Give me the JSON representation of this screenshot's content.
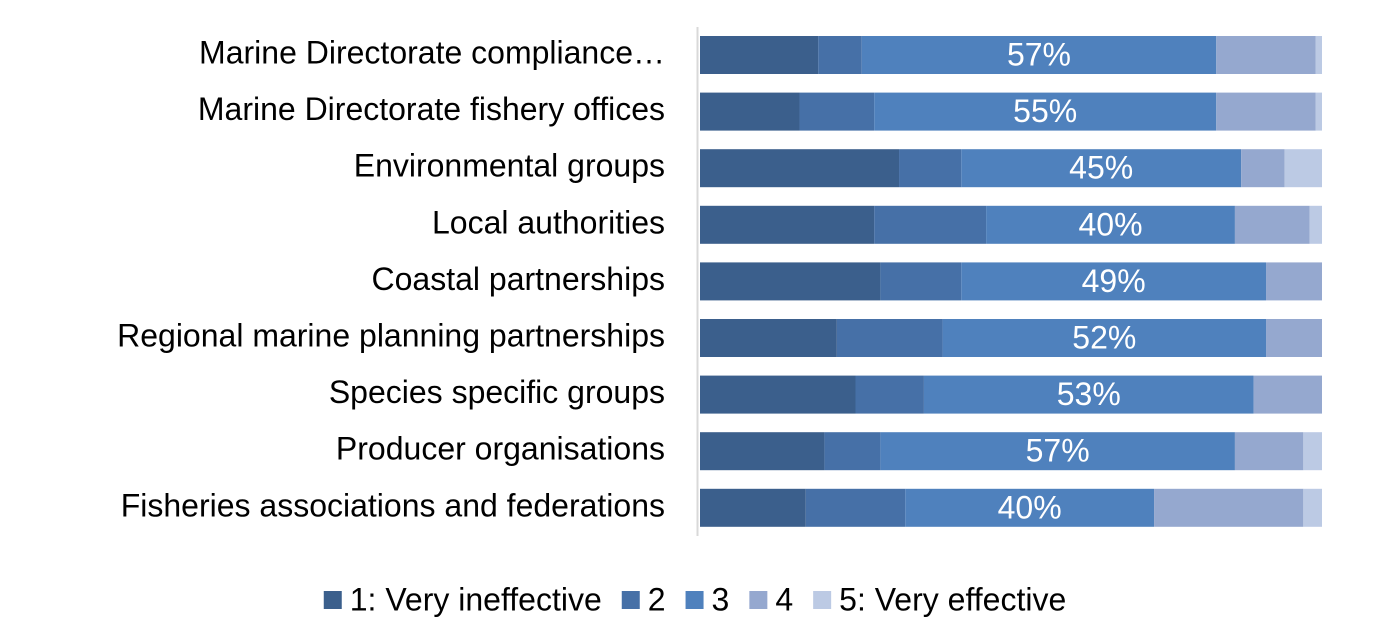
{
  "chart_data": {
    "type": "stacked-bar-horizontal",
    "categories": [
      "Marine Directorate compliance…",
      "Marine Directorate fishery offices",
      "Environmental groups",
      "Local authorities",
      "Coastal partnerships",
      "Regional marine planning partnerships",
      "Species specific groups",
      "Producer organisations",
      "Fisheries associations and federations"
    ],
    "xlim": [
      0,
      100
    ],
    "series": [
      {
        "name": "1: Very ineffective",
        "color": "#3b5f8c",
        "values": [
          19,
          16,
          32,
          28,
          29,
          22,
          25,
          20,
          17
        ]
      },
      {
        "name": "2",
        "color": "#4670a7",
        "values": [
          7,
          12,
          10,
          18,
          13,
          17,
          11,
          9,
          16
        ]
      },
      {
        "name": "3",
        "color": "#4f81bd",
        "values": [
          57,
          55,
          45,
          40,
          49,
          52,
          53,
          57,
          40
        ],
        "value_labels": [
          "57%",
          "55%",
          "45%",
          "40%",
          "49%",
          "52%",
          "53%",
          "57%",
          "40%"
        ]
      },
      {
        "name": "4",
        "color": "#95a8cf",
        "values": [
          16,
          16,
          7,
          12,
          9,
          9,
          11,
          11,
          24
        ]
      },
      {
        "name": "5: Very effective",
        "color": "#bccae4",
        "values": [
          1,
          1,
          6,
          2,
          0,
          0,
          0,
          3,
          3
        ]
      }
    ]
  }
}
